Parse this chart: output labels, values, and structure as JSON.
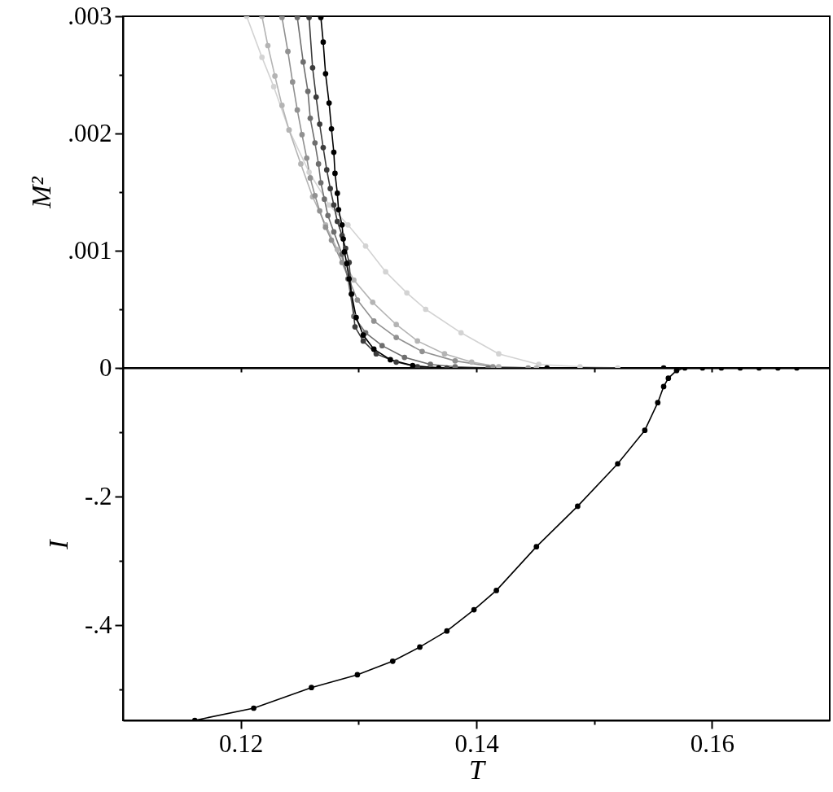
{
  "chart_data": [
    {
      "type": "line",
      "ylabel": "M²",
      "marker": "circle",
      "line_style": "solid",
      "tick_labels": "y",
      "xlim": [
        0.11,
        0.17
      ],
      "xticks": [
        {
          "value": 0.12,
          "label": null
        },
        {
          "value": 0.13,
          "label": null
        },
        {
          "value": 0.14,
          "label": null
        },
        {
          "value": 0.15,
          "label": null
        },
        {
          "value": 0.16,
          "label": null
        }
      ],
      "ylim": [
        0,
        0.003
      ],
      "yticks": [
        {
          "value": 0,
          "label": "0"
        },
        {
          "value": 0.0005,
          "label": null
        },
        {
          "value": 0.001,
          "label": ".001"
        },
        {
          "value": 0.0015,
          "label": null
        },
        {
          "value": 0.002,
          "label": ".002"
        },
        {
          "value": 0.0025,
          "label": null
        },
        {
          "value": 0.003,
          "label": ".003"
        }
      ],
      "series": [
        {
          "color": "#d3d3d3",
          "x": [
            0.1205,
            0.1218,
            0.1228,
            0.1241,
            0.1258,
            0.1275,
            0.1291,
            0.1306,
            0.1323,
            0.1341,
            0.1357,
            0.1387,
            0.1419,
            0.1453,
            0.1488,
            0.152
          ],
          "values": [
            0.003,
            0.00265,
            0.0024,
            0.00203,
            0.00167,
            0.00139,
            0.00122,
            0.00104,
            0.00082,
            0.00064,
            0.0005,
            0.0003,
            0.00012,
            3e-05,
            1e-05,
            0
          ]
        },
        {
          "color": "#b4b4b4",
          "x": [
            0.1218,
            0.1223,
            0.1229,
            0.1235,
            0.1241,
            0.1251,
            0.1261,
            0.1272,
            0.1282,
            0.1296,
            0.1312,
            0.1332,
            0.135,
            0.1373,
            0.1396,
            0.1419,
            0.1451
          ],
          "values": [
            0.003,
            0.00275,
            0.00249,
            0.00224,
            0.00203,
            0.00174,
            0.00146,
            0.00122,
            0.00101,
            0.00075,
            0.00056,
            0.00037,
            0.00023,
            0.00012,
            5e-05,
            1e-05,
            0
          ]
        },
        {
          "color": "#919191",
          "x": [
            0.1235,
            0.124,
            0.1244,
            0.1248,
            0.1252,
            0.1256,
            0.1259,
            0.1263,
            0.1267,
            0.1272,
            0.1277,
            0.1286,
            0.1299,
            0.1313,
            0.1332,
            0.1354,
            0.1382,
            0.1414,
            0.1444
          ],
          "values": [
            0.00299,
            0.0027,
            0.00244,
            0.0022,
            0.00199,
            0.00179,
            0.00162,
            0.00147,
            0.00134,
            0.0012,
            0.00109,
            0.0009,
            0.00058,
            0.0004,
            0.00026,
            0.00014,
            6e-05,
            1e-05,
            0
          ]
        },
        {
          "color": "#6e6e6e",
          "x": [
            0.1248,
            0.1253,
            0.1257,
            0.1259,
            0.1263,
            0.1266,
            0.1268,
            0.1271,
            0.1274,
            0.1279,
            0.1286,
            0.1291,
            0.1296,
            0.1306,
            0.132,
            0.1339,
            0.1361,
            0.1382,
            0.141
          ],
          "values": [
            0.00299,
            0.00261,
            0.00236,
            0.00213,
            0.00192,
            0.00174,
            0.00158,
            0.00144,
            0.0013,
            0.00116,
            0.00097,
            0.00076,
            0.00044,
            0.0003,
            0.00019,
            9e-05,
            3e-05,
            1e-05,
            0
          ]
        },
        {
          "color": "#3c3c3c",
          "x": [
            0.1258,
            0.1261,
            0.1264,
            0.1267,
            0.127,
            0.1273,
            0.1276,
            0.1279,
            0.1282,
            0.1286,
            0.1289,
            0.1292,
            0.1294,
            0.1297,
            0.1304,
            0.1315,
            0.1332,
            0.135,
            0.1375
          ],
          "values": [
            0.00299,
            0.00256,
            0.00231,
            0.00208,
            0.00188,
            0.00169,
            0.00153,
            0.00139,
            0.00125,
            0.00113,
            0.00102,
            0.0009,
            0.00063,
            0.00035,
            0.00023,
            0.00012,
            5e-05,
            1e-05,
            0
          ]
        },
        {
          "color": "#000000",
          "x": [
            0.1268,
            0.127,
            0.1272,
            0.1275,
            0.1277,
            0.1279,
            0.128,
            0.1282,
            0.1283,
            0.1286,
            0.1287,
            0.1288,
            0.129,
            0.1292,
            0.1294,
            0.1298,
            0.1304,
            0.1313,
            0.1327,
            0.1346,
            0.1368,
            0.146,
            0.1559
          ],
          "values": [
            0.00299,
            0.00278,
            0.00251,
            0.00226,
            0.00204,
            0.00184,
            0.00166,
            0.00149,
            0.00135,
            0.00122,
            0.0011,
            0.00099,
            0.00089,
            0.00076,
            0.00063,
            0.00043,
            0.00028,
            0.00016,
            7e-05,
            2e-05,
            0,
            0,
            0
          ]
        }
      ]
    },
    {
      "type": "line",
      "xlabel": "T",
      "ylabel": "I",
      "marker": "circle",
      "line_style": "solid",
      "xlim": [
        0.11,
        0.17
      ],
      "xticks": [
        {
          "value": 0.12,
          "label": "0.12"
        },
        {
          "value": 0.13,
          "label": null
        },
        {
          "value": 0.14,
          "label": "0.14"
        },
        {
          "value": 0.15,
          "label": null
        },
        {
          "value": 0.16,
          "label": "0.16"
        }
      ],
      "ylim": [
        -0.548,
        0
      ],
      "yticks": [
        {
          "value": 0,
          "label": null
        },
        {
          "value": -0.1,
          "label": null
        },
        {
          "value": -0.2,
          "label": "-.2"
        },
        {
          "value": -0.3,
          "label": null
        },
        {
          "value": -0.4,
          "label": "-.4"
        },
        {
          "value": -0.5,
          "label": null
        }
      ],
      "series": [
        {
          "color": "#000000",
          "x": [
            0.1161,
            0.1211,
            0.126,
            0.1299,
            0.1329,
            0.1352,
            0.1375,
            0.1398,
            0.1417,
            0.1451,
            0.1486,
            0.152,
            0.1543,
            0.1554,
            0.1559,
            0.1563,
            0.157,
            0.1577,
            0.1592,
            0.1608,
            0.1624,
            0.164,
            0.1656,
            0.1672
          ],
          "values": [
            -0.548,
            -0.529,
            -0.497,
            -0.477,
            -0.456,
            -0.434,
            -0.409,
            -0.376,
            -0.346,
            -0.278,
            -0.215,
            -0.149,
            -0.097,
            -0.054,
            -0.029,
            -0.016,
            -0.004,
            0,
            0,
            0,
            0,
            0,
            0,
            0
          ]
        }
      ]
    }
  ]
}
